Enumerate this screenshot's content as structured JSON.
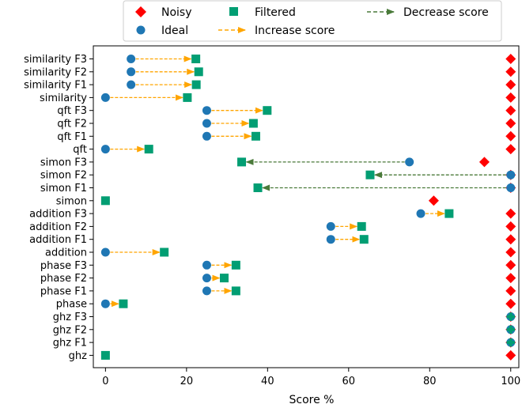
{
  "chart_data": {
    "type": "scatter",
    "orientation": "horizontal-categories",
    "xlabel": "Score %",
    "xlim": [
      -3,
      102
    ],
    "xticks": [
      0,
      20,
      40,
      60,
      80,
      100
    ],
    "categories": [
      "similarity F3",
      "similarity F2",
      "similarity F1",
      "similarity",
      "qft F3",
      "qft F2",
      "qft F1",
      "qft",
      "simon F3",
      "simon F2",
      "simon F1",
      "simon",
      "addition F3",
      "addition F2",
      "addition F1",
      "addition",
      "phase F3",
      "phase F2",
      "phase F1",
      "phase",
      "ghz F3",
      "ghz F2",
      "ghz F1",
      "ghz"
    ],
    "series": [
      {
        "name": "Noisy",
        "marker": "diamond",
        "color": "#ff0000",
        "values": [
          100,
          100,
          100,
          100,
          100,
          100,
          100,
          100,
          93.5,
          100,
          100,
          81,
          100,
          100,
          100,
          100,
          100,
          100,
          100,
          100,
          100,
          100,
          100,
          100
        ]
      },
      {
        "name": "Ideal",
        "marker": "circle",
        "color": "#1f77b4",
        "values": [
          6.3,
          6.3,
          6.3,
          0,
          25,
          25,
          25,
          0,
          75,
          100,
          100,
          null,
          77.8,
          55.6,
          55.6,
          0,
          25,
          25,
          25,
          0,
          100,
          100,
          100,
          null
        ]
      },
      {
        "name": "Filtered",
        "marker": "square",
        "color": "#029e73",
        "values": [
          22.3,
          23,
          22.4,
          20.2,
          39.9,
          36.5,
          37.1,
          10.7,
          33.6,
          65.3,
          37.6,
          0,
          84.8,
          63.2,
          63.8,
          14.5,
          32.2,
          29.3,
          32.2,
          4.4,
          100,
          100,
          100,
          0
        ]
      }
    ],
    "arrows": [
      {
        "name": "Increase score",
        "color": "#ffa500",
        "from": "Ideal",
        "to": "Filtered",
        "direction": "increase"
      },
      {
        "name": "Decrease score",
        "color": "#4a7a3a",
        "from": "Ideal",
        "to": "Filtered",
        "direction": "decrease"
      }
    ],
    "legend": {
      "placement": "top-center",
      "entries": [
        "Noisy",
        "Ideal",
        "Filtered",
        "Increase score",
        "Decrease score"
      ]
    },
    "grid": false
  }
}
